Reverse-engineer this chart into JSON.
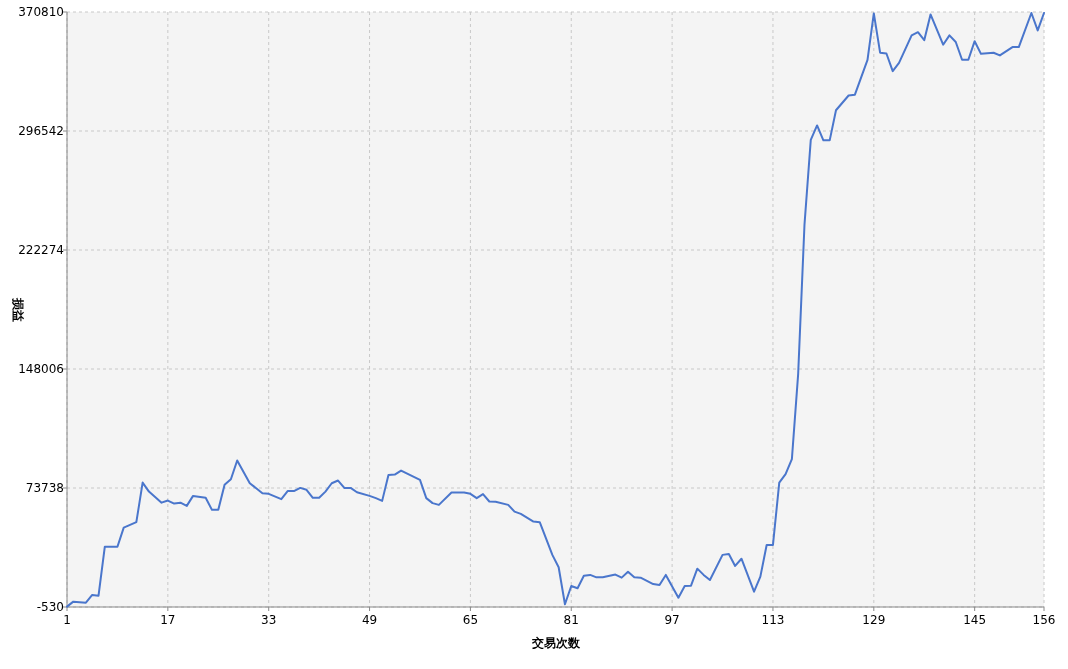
{
  "chart_data": {
    "type": "line",
    "xlabel": "交易次数",
    "ylabel": "损益",
    "xlim": [
      1,
      156
    ],
    "ylim": [
      -530,
      370810
    ],
    "xticks": [
      1,
      17,
      33,
      49,
      65,
      81,
      97,
      113,
      129,
      145,
      156
    ],
    "yticks": [
      -530,
      73738,
      148006,
      222274,
      296542,
      370810
    ],
    "grid": true,
    "series": [
      {
        "color": "#4a76cc",
        "x": [
          1,
          2,
          4,
          5,
          6,
          7,
          9,
          10,
          12,
          13,
          14,
          16,
          17,
          18,
          19,
          20,
          21,
          23,
          24,
          25,
          26,
          27,
          28,
          30,
          32,
          33,
          35,
          36,
          37,
          38,
          39,
          40,
          41,
          42,
          43,
          44,
          45,
          46,
          47,
          49,
          50,
          51,
          52,
          53,
          54,
          57,
          58,
          59,
          60,
          62,
          64,
          65,
          66,
          67,
          68,
          69,
          71,
          72,
          73,
          75,
          76,
          78,
          79,
          80,
          81,
          82,
          83,
          84,
          85,
          86,
          88,
          89,
          90,
          91,
          92,
          94,
          95,
          96,
          98,
          99,
          100,
          101,
          102,
          103,
          105,
          106,
          107,
          108,
          110,
          111,
          112,
          113,
          114,
          115,
          116,
          117,
          118,
          119,
          120,
          121,
          122,
          123,
          125,
          126,
          128,
          129,
          130,
          131,
          132,
          133,
          135,
          136,
          137,
          138,
          140,
          141,
          142,
          143,
          144,
          145,
          146,
          148,
          149,
          151,
          152,
          154,
          155,
          156
        ],
        "values": [
          -300,
          2800,
          2200,
          7000,
          6500,
          37100,
          37100,
          49000,
          52400,
          77100,
          71500,
          64600,
          65900,
          64000,
          64600,
          62600,
          68800,
          67600,
          60100,
          60100,
          75700,
          79200,
          90900,
          76700,
          70500,
          70100,
          66800,
          71800,
          71800,
          73800,
          72600,
          67600,
          67600,
          71500,
          76700,
          78400,
          73800,
          73800,
          71100,
          68800,
          67400,
          65700,
          81900,
          82100,
          84600,
          78800,
          67400,
          64300,
          63200,
          70900,
          70900,
          70100,
          67400,
          69900,
          65300,
          65100,
          63200,
          59000,
          57600,
          52800,
          52400,
          32000,
          24300,
          1200,
          12600,
          11200,
          19000,
          19500,
          18000,
          18000,
          19700,
          17800,
          21500,
          18000,
          17800,
          13800,
          13200,
          19500,
          5300,
          12600,
          12800,
          23400,
          19500,
          16300,
          32000,
          32600,
          25100,
          29600,
          9000,
          18400,
          38200,
          38200,
          77100,
          82400,
          91700,
          145000,
          238000,
          291000,
          300000,
          290700,
          290700,
          309500,
          318700,
          319200,
          340900,
          369900,
          345400,
          344900,
          333900,
          339100,
          356200,
          358200,
          353200,
          369300,
          350400,
          356200,
          352100,
          341000,
          341000,
          352600,
          344700,
          345400,
          343700,
          348900,
          348900,
          370200,
          359300,
          370200
        ]
      }
    ]
  }
}
